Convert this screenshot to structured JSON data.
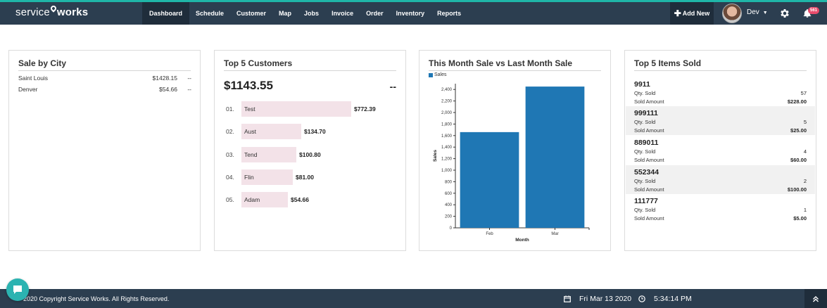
{
  "brand": {
    "name_left": "service",
    "name_right": "works"
  },
  "nav": {
    "items": [
      {
        "label": "Dashboard",
        "active": true
      },
      {
        "label": "Schedule"
      },
      {
        "label": "Customer"
      },
      {
        "label": "Map"
      },
      {
        "label": "Jobs"
      },
      {
        "label": "Invoice"
      },
      {
        "label": "Order"
      },
      {
        "label": "Inventory"
      },
      {
        "label": "Reports"
      }
    ],
    "add_new": "Add New",
    "user_name": "Dev",
    "notification_count": "561"
  },
  "sale_by_city": {
    "title": "Sale by City",
    "rows": [
      {
        "city": "Saint Louis",
        "amount": "$1428.15",
        "extra": "--"
      },
      {
        "city": "Denver",
        "amount": "$54.66",
        "extra": "--"
      }
    ]
  },
  "top_customers": {
    "title": "Top 5 Customers",
    "total": "$1143.55",
    "change": "--",
    "rows": [
      {
        "rank": "01.",
        "name": "Test",
        "amount": "$772.39",
        "value": 772.39
      },
      {
        "rank": "02.",
        "name": "Aust",
        "amount": "$134.70",
        "value": 134.7
      },
      {
        "rank": "03.",
        "name": "Tend",
        "amount": "$100.80",
        "value": 100.8
      },
      {
        "rank": "04.",
        "name": "Flin",
        "amount": "$81.00",
        "value": 81.0
      },
      {
        "rank": "05.",
        "name": "Adam",
        "amount": "$54.66",
        "value": 54.66
      }
    ]
  },
  "month_sale": {
    "title": "This Month Sale vs Last Month Sale"
  },
  "chart_data": {
    "type": "bar",
    "categories": [
      "Feb",
      "Mar"
    ],
    "series": [
      {
        "name": "Sales",
        "values": [
          1660,
          2450
        ],
        "color": "#1f77b4"
      }
    ],
    "xlabel": "Month",
    "ylabel": "Sales",
    "ylim": [
      0,
      2500
    ],
    "yticks": [
      "0",
      "200",
      "400",
      "600",
      "800",
      "1,000",
      "1,200",
      "1,400",
      "1,600",
      "1,800",
      "2,000",
      "2,200",
      "2,400"
    ],
    "legend": "top-left",
    "grid": false
  },
  "top_items": {
    "title": "Top 5 Items Sold",
    "qty_label": "Qty. Sold",
    "amount_label": "Sold Amount",
    "items": [
      {
        "code": "9911",
        "qty": "57",
        "amount": "$228.00"
      },
      {
        "code": "999111",
        "qty": "5",
        "amount": "$25.00"
      },
      {
        "code": "889011",
        "qty": "4",
        "amount": "$60.00"
      },
      {
        "code": "552344",
        "qty": "2",
        "amount": "$100.00"
      },
      {
        "code": "111777",
        "qty": "1",
        "amount": "$5.00"
      }
    ]
  },
  "footer": {
    "copyright": "2020 Copyright Service Works. All Rights Reserved.",
    "date": "Fri Mar 13 2020",
    "time": "5:34:14 PM"
  },
  "colors": {
    "navbar": "#2c3e50",
    "accent": "#1fb6a8",
    "bar": "#1f77b4",
    "customer_bar": "#f3e2e8",
    "badge": "#e74c6c"
  }
}
